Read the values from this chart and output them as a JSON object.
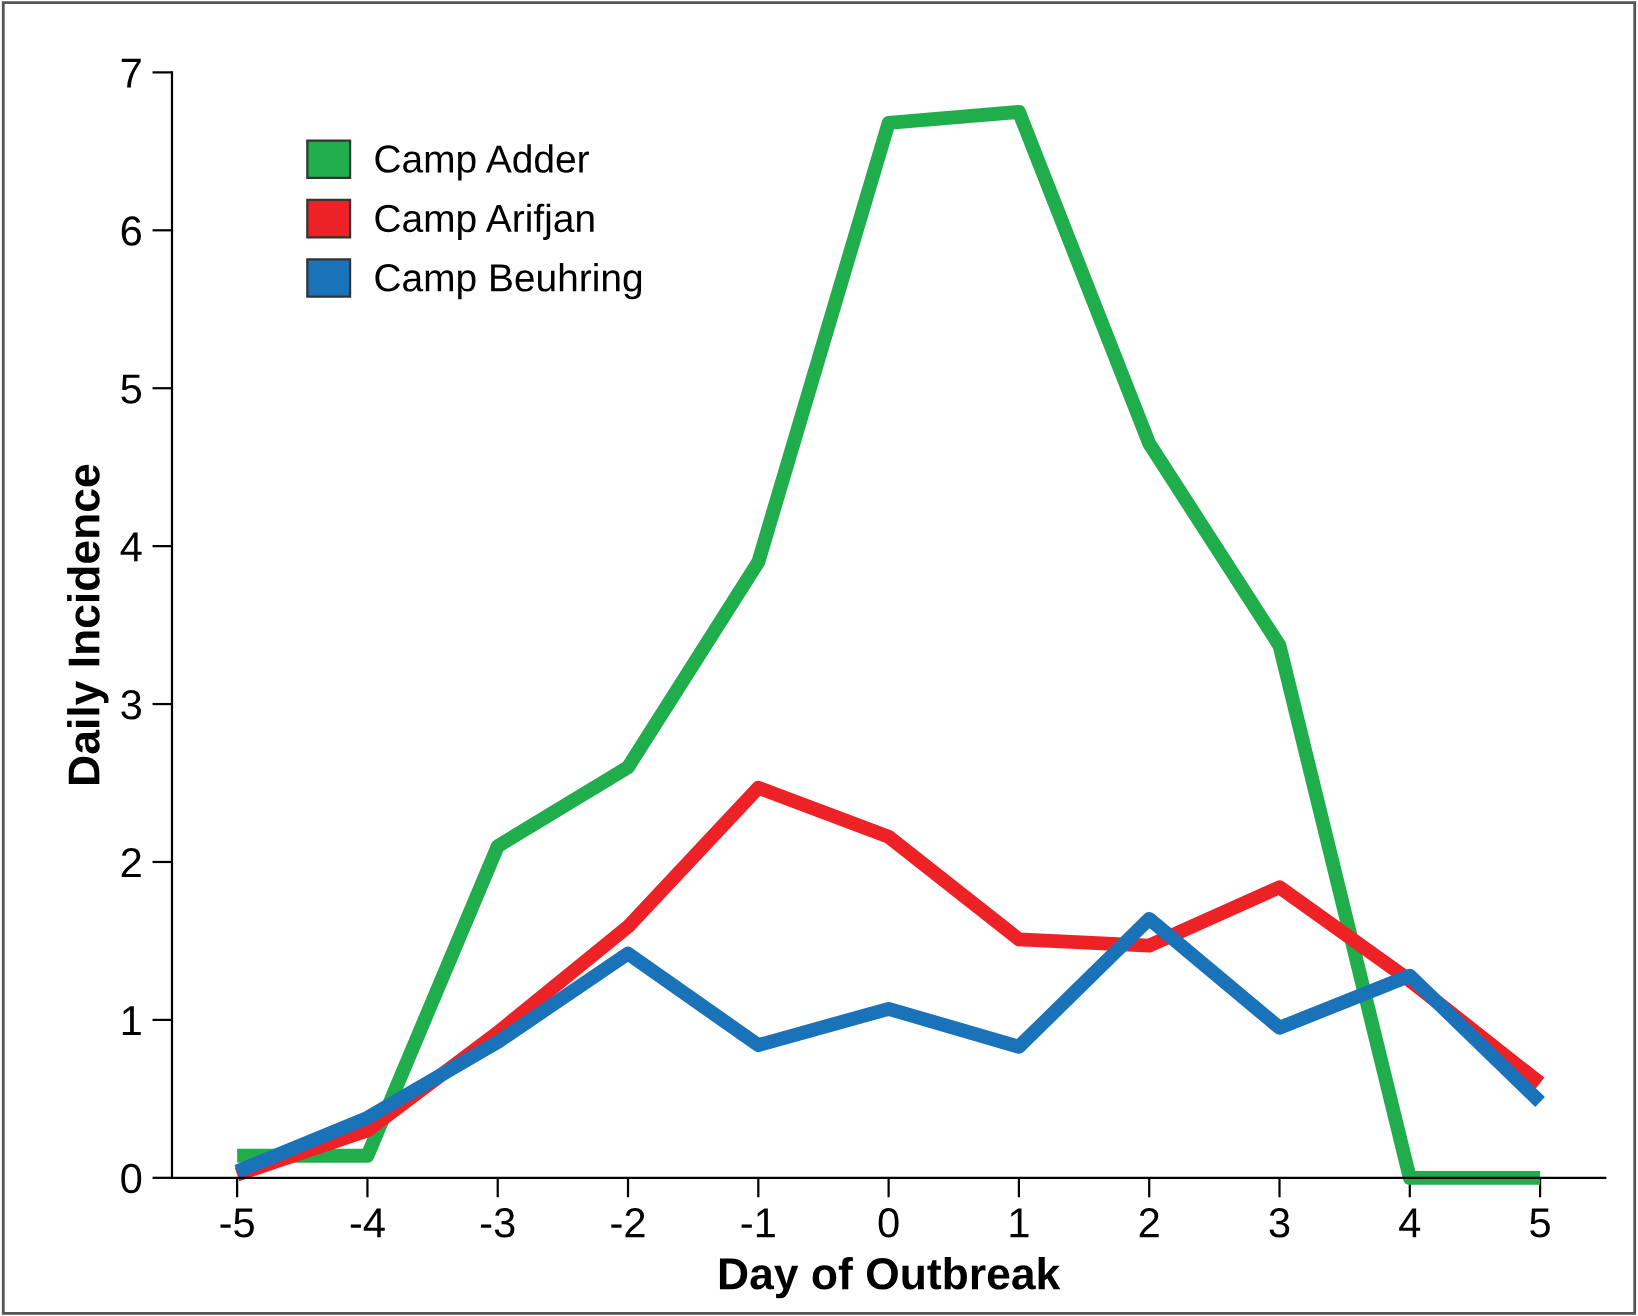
{
  "chart_data": {
    "type": "line",
    "xlabel": "Day of Outbreak",
    "ylabel": "Daily Incidence",
    "x": [
      -5,
      -4,
      -3,
      -2,
      -1,
      0,
      1,
      2,
      3,
      4,
      5
    ],
    "series": [
      {
        "name": "Camp Adder",
        "color": "#1fae4b",
        "values": [
          0.14,
          0.14,
          2.1,
          2.6,
          3.9,
          6.68,
          6.75,
          4.65,
          3.37,
          0,
          0
        ]
      },
      {
        "name": "Camp Arifjan",
        "color": "#ec2227",
        "values": [
          0.02,
          0.3,
          0.92,
          1.59,
          2.47,
          2.16,
          1.51,
          1.47,
          1.84,
          1.25,
          0.6
        ]
      },
      {
        "name": "Camp Beuhring",
        "color": "#1a72b9",
        "values": [
          0.04,
          0.38,
          0.86,
          1.42,
          0.84,
          1.07,
          0.83,
          1.64,
          0.95,
          1.28,
          0.48
        ]
      }
    ],
    "xlim": [
      -5.5,
      5.5
    ],
    "xticks": [
      -5,
      -4,
      -3,
      -2,
      -1,
      0,
      1,
      2,
      3,
      4,
      5
    ],
    "ylim": [
      0,
      7
    ],
    "yticks": [
      0,
      1,
      2,
      3,
      4,
      5,
      6,
      7
    ],
    "grid": false,
    "legend": "top left",
    "marker": "none",
    "line_style": "solid"
  }
}
